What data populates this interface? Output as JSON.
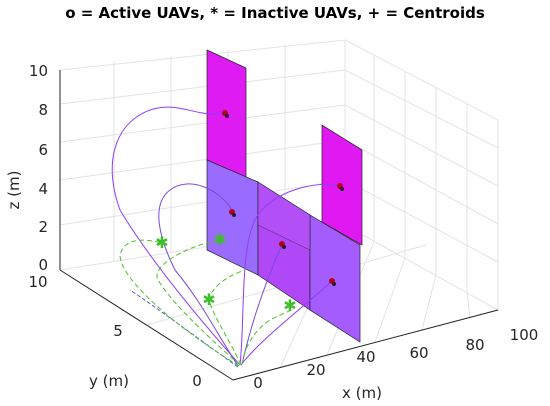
{
  "chart_data": {
    "type": "3d-line-patch",
    "title": "o = Active UAVs, * = Inactive UAVs, + = Centroids",
    "xlabel": "x (m)",
    "ylabel": "y (m)",
    "zlabel": "z (m)",
    "xlim": [
      0,
      100
    ],
    "ylim": [
      0,
      10
    ],
    "zlim": [
      0,
      10
    ],
    "xticks": [
      "0",
      "20",
      "40",
      "60",
      "80",
      "100"
    ],
    "yticks": [
      "0",
      "5",
      "10"
    ],
    "zticks": [
      "0",
      "2",
      "4",
      "6",
      "8",
      "10"
    ],
    "grid": true,
    "panels": [
      {
        "x": [
          10,
          30
        ],
        "z": [
          6,
          10
        ],
        "color": "#dd1bf2"
      },
      {
        "x": [
          10,
          30
        ],
        "z": [
          2,
          6
        ],
        "color": "#a066ff"
      },
      {
        "x": [
          30,
          50
        ],
        "z": [
          2,
          6
        ],
        "color": "#b048f8"
      },
      {
        "x": [
          50,
          70
        ],
        "z": [
          2,
          6
        ],
        "color": "#b850f8"
      },
      {
        "x": [
          50,
          70
        ],
        "z": [
          0,
          2
        ],
        "color": "#a060ff"
      },
      {
        "x": [
          70,
          90
        ],
        "z": [
          0,
          4
        ],
        "color": "#a55cff"
      },
      {
        "x": [
          70,
          90
        ],
        "z": [
          4,
          8
        ],
        "color": "#e018f2"
      }
    ],
    "active_uavs": [
      {
        "x": 20,
        "y": 0,
        "z": 8
      },
      {
        "x": 20,
        "y": 0,
        "z": 4
      },
      {
        "x": 40,
        "y": 0,
        "z": 4
      },
      {
        "x": 60,
        "y": 0,
        "z": 4
      },
      {
        "x": 60,
        "y": 0,
        "z": 1
      },
      {
        "x": 80,
        "y": 0,
        "z": 2
      },
      {
        "x": 80,
        "y": 0,
        "z": 6
      }
    ],
    "inactive_uavs": [
      {
        "x": 0,
        "y": 6,
        "z": 3
      },
      {
        "x": 0,
        "y": 2.5,
        "z": 2
      },
      {
        "x": 22,
        "y": 3,
        "z": 3
      },
      {
        "x": 30,
        "y": 2,
        "z": 2
      }
    ],
    "series": [
      {
        "style": "solid",
        "color": "#8f3cff"
      },
      {
        "style": "solid",
        "color": "#7a4ad8"
      },
      {
        "style": "dashed",
        "color": "#4cc02a"
      }
    ]
  }
}
